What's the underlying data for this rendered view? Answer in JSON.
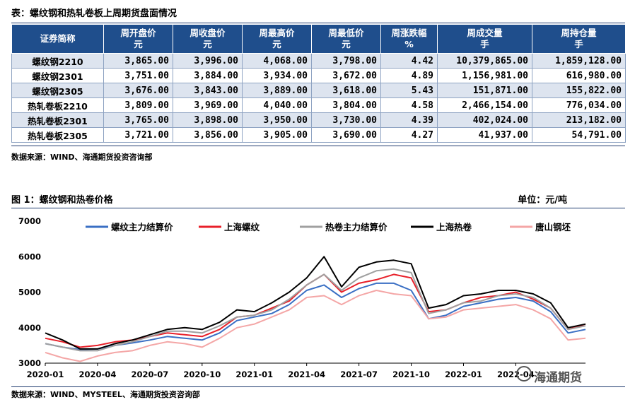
{
  "table_caption": "表：螺纹钢和热轧卷板上周期货盘面情况",
  "table": {
    "headers": [
      {
        "line1": "证券简称",
        "line2": ""
      },
      {
        "line1": "周开盘价",
        "line2": "元"
      },
      {
        "line1": "周收盘价",
        "line2": "元"
      },
      {
        "line1": "周最高价",
        "line2": "元"
      },
      {
        "line1": "周最低价",
        "line2": "元"
      },
      {
        "line1": "周涨跌幅",
        "line2": "%"
      },
      {
        "line1": "周成交量",
        "line2": "手"
      },
      {
        "line1": "周持仓量",
        "line2": "手"
      }
    ],
    "rows": [
      [
        "螺纹钢2210",
        "3,865.00",
        "3,996.00",
        "4,068.00",
        "3,798.00",
        "4.42",
        "10,379,865.00",
        "1,859,128.00"
      ],
      [
        "螺纹钢2301",
        "3,751.00",
        "3,884.00",
        "3,934.00",
        "3,672.00",
        "4.89",
        "1,156,981.00",
        "616,980.00"
      ],
      [
        "螺纹钢2305",
        "3,676.00",
        "3,843.00",
        "3,889.00",
        "3,618.00",
        "5.43",
        "151,871.00",
        "155,822.00"
      ],
      [
        "热轧卷板2210",
        "3,809.00",
        "3,969.00",
        "4,040.00",
        "3,804.00",
        "4.58",
        "2,466,154.00",
        "776,034.00"
      ],
      [
        "热轧卷板2301",
        "3,765.00",
        "3,898.00",
        "3,950.00",
        "3,730.00",
        "4.39",
        "402,024.00",
        "213,182.00"
      ],
      [
        "热轧卷板2305",
        "3,721.00",
        "3,856.00",
        "3,905.00",
        "3,690.00",
        "4.27",
        "41,937.00",
        "54,791.00"
      ]
    ]
  },
  "table_source": "数据来源：WIND、海通期货投资咨询部",
  "figure_caption": "图 1：螺纹钢和热卷价格",
  "figure_unit": "单位：元/吨",
  "chart_source": "数据来源：WIND、MYSTEEL、海通期货投资咨询部",
  "watermark": "海通期货",
  "chart_data": {
    "type": "line",
    "title": "",
    "xlabel": "",
    "ylabel": "",
    "ylim": [
      3000,
      7000
    ],
    "yticks": [
      "3000",
      "4000",
      "5000",
      "6000",
      "7000"
    ],
    "xlim": [
      "2020-01",
      "2022-09"
    ],
    "xticks": [
      "2020-01",
      "2020-04",
      "2020-07",
      "2020-10",
      "2021-01",
      "2021-04",
      "2021-07",
      "2021-10",
      "2022-01",
      "2022-04"
    ],
    "grid": false,
    "legend_position": "top",
    "x": [
      "2020-01",
      "2020-02",
      "2020-03",
      "2020-04",
      "2020-05",
      "2020-06",
      "2020-07",
      "2020-08",
      "2020-09",
      "2020-10",
      "2020-11",
      "2020-12",
      "2021-01",
      "2021-02",
      "2021-03",
      "2021-04",
      "2021-05",
      "2021-06",
      "2021-07",
      "2021-08",
      "2021-09",
      "2021-10",
      "2021-11",
      "2021-12",
      "2022-01",
      "2022-02",
      "2022-03",
      "2022-04",
      "2022-05",
      "2022-06",
      "2022-07",
      "2022-08"
    ],
    "series": [
      {
        "name": "螺纹主力结算价",
        "color": "#3a6fc4",
        "values": [
          3550,
          3450,
          3380,
          3400,
          3500,
          3570,
          3650,
          3750,
          3700,
          3650,
          3850,
          4200,
          4300,
          4400,
          4650,
          5050,
          5200,
          4850,
          5100,
          5250,
          5250,
          5050,
          4250,
          4350,
          4600,
          4700,
          4800,
          4850,
          4750,
          4450,
          3850,
          3950
        ]
      },
      {
        "name": "上海螺纹",
        "color": "#e8202a",
        "values": [
          3700,
          3600,
          3450,
          3500,
          3600,
          3650,
          3750,
          3850,
          3800,
          3750,
          3950,
          4300,
          4350,
          4550,
          4750,
          5200,
          5500,
          5000,
          5250,
          5350,
          5500,
          5400,
          4450,
          4500,
          4700,
          4850,
          4900,
          5000,
          4800,
          4550,
          3950,
          4100
        ]
      },
      {
        "name": "热卷主力结算价",
        "color": "#a0a0a0",
        "values": [
          3550,
          3450,
          3350,
          3350,
          3500,
          3600,
          3750,
          3900,
          3900,
          3850,
          4050,
          4300,
          4350,
          4500,
          4800,
          5200,
          5500,
          5050,
          5400,
          5600,
          5650,
          5550,
          4400,
          4500,
          4700,
          4750,
          4900,
          4950,
          4850,
          4550,
          3950,
          4050
        ]
      },
      {
        "name": "上海热卷",
        "color": "#000000",
        "values": [
          3850,
          3650,
          3400,
          3400,
          3550,
          3650,
          3800,
          3950,
          4000,
          3950,
          4150,
          4500,
          4450,
          4700,
          5000,
          5400,
          6000,
          5150,
          5700,
          5850,
          5900,
          5800,
          4550,
          4650,
          4900,
          4950,
          5050,
          5050,
          4950,
          4700,
          4000,
          4100
        ]
      },
      {
        "name": "唐山钢坯",
        "color": "#f4a6a6",
        "values": [
          3300,
          3150,
          3050,
          3200,
          3300,
          3350,
          3500,
          3600,
          3550,
          3450,
          3700,
          4000,
          4100,
          4300,
          4500,
          4850,
          4900,
          4650,
          4900,
          5050,
          4950,
          4900,
          4250,
          4300,
          4500,
          4550,
          4600,
          4650,
          4500,
          4250,
          3650,
          3700
        ]
      }
    ]
  }
}
